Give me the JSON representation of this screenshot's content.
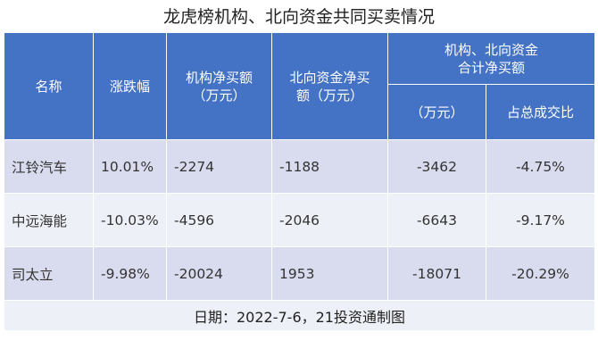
{
  "title": "龙虎榜机构、北向资金共同买卖情况",
  "headers": {
    "name": "名称",
    "change": "涨跌幅",
    "inst_line1": "机构净买额",
    "inst_line2": "（万元）",
    "north_line1": "北向资金净买",
    "north_line2": "额（万元）",
    "combined_line1": "机构、北向资金",
    "combined_line2": "合计净买额",
    "combined_unit": "（万元）",
    "combined_share": "占总成交比"
  },
  "rows": [
    {
      "name": "江铃汽车",
      "change": "10.01%",
      "inst": "-2274",
      "north": "-1188",
      "total": "-3462",
      "share": "-4.75%"
    },
    {
      "name": "中远海能",
      "change": "-10.03%",
      "inst": "-4596",
      "north": "-2046",
      "total": "-6643",
      "share": "-9.17%"
    },
    {
      "name": "司太立",
      "change": "-9.98%",
      "inst": "-20024",
      "north": "1953",
      "total": "-18071",
      "share": "-20.29%"
    }
  ],
  "footer": "日期：2022-7-6，21投资通制图",
  "colors": {
    "header_bg": "#4472c4",
    "row_dark": "#d9dcee",
    "row_light": "#eef0f7"
  }
}
